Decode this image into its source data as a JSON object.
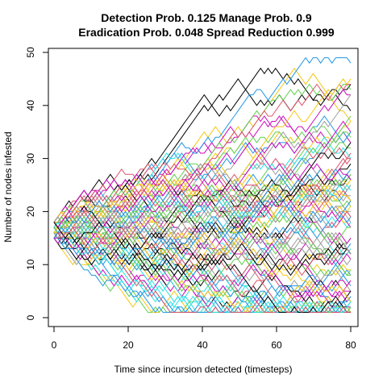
{
  "chart_data": {
    "type": "line",
    "title_line1": "Detection Prob. 0.125 Manage Prob. 0.9",
    "title_line2": "Eradication Prob. 0.048 Spread Reduction 0.999",
    "xlabel": "Time since incursion detected (timesteps)",
    "ylabel": "Number of nodes infested",
    "xlim": [
      1,
      80
    ],
    "ylim": [
      0,
      50
    ],
    "x_ticks": [
      0,
      20,
      40,
      60,
      80
    ],
    "y_ticks": [
      0,
      10,
      20,
      30,
      40,
      50
    ],
    "grid": false,
    "n_series": 100,
    "start_range": [
      15,
      18
    ],
    "palette": [
      "#000000",
      "#DF536B",
      "#61D04F",
      "#2297E6",
      "#28E2E5",
      "#CD0BBC",
      "#F5C710",
      "#9E9E9E"
    ],
    "series_highlights": [
      {
        "color_index": 3,
        "peak": 49,
        "peak_t": 27
      },
      {
        "color_index": 6,
        "peak": 49,
        "peak_t": 41
      },
      {
        "color_index": 0,
        "peak": 48,
        "peak_t": 61
      },
      {
        "color_index": 6,
        "peak": 44,
        "peak_t": 74
      },
      {
        "color_index": 0,
        "peak": 40,
        "peak_t": 68
      },
      {
        "color_index": 7,
        "peak": 38,
        "peak_t": 15
      }
    ]
  }
}
